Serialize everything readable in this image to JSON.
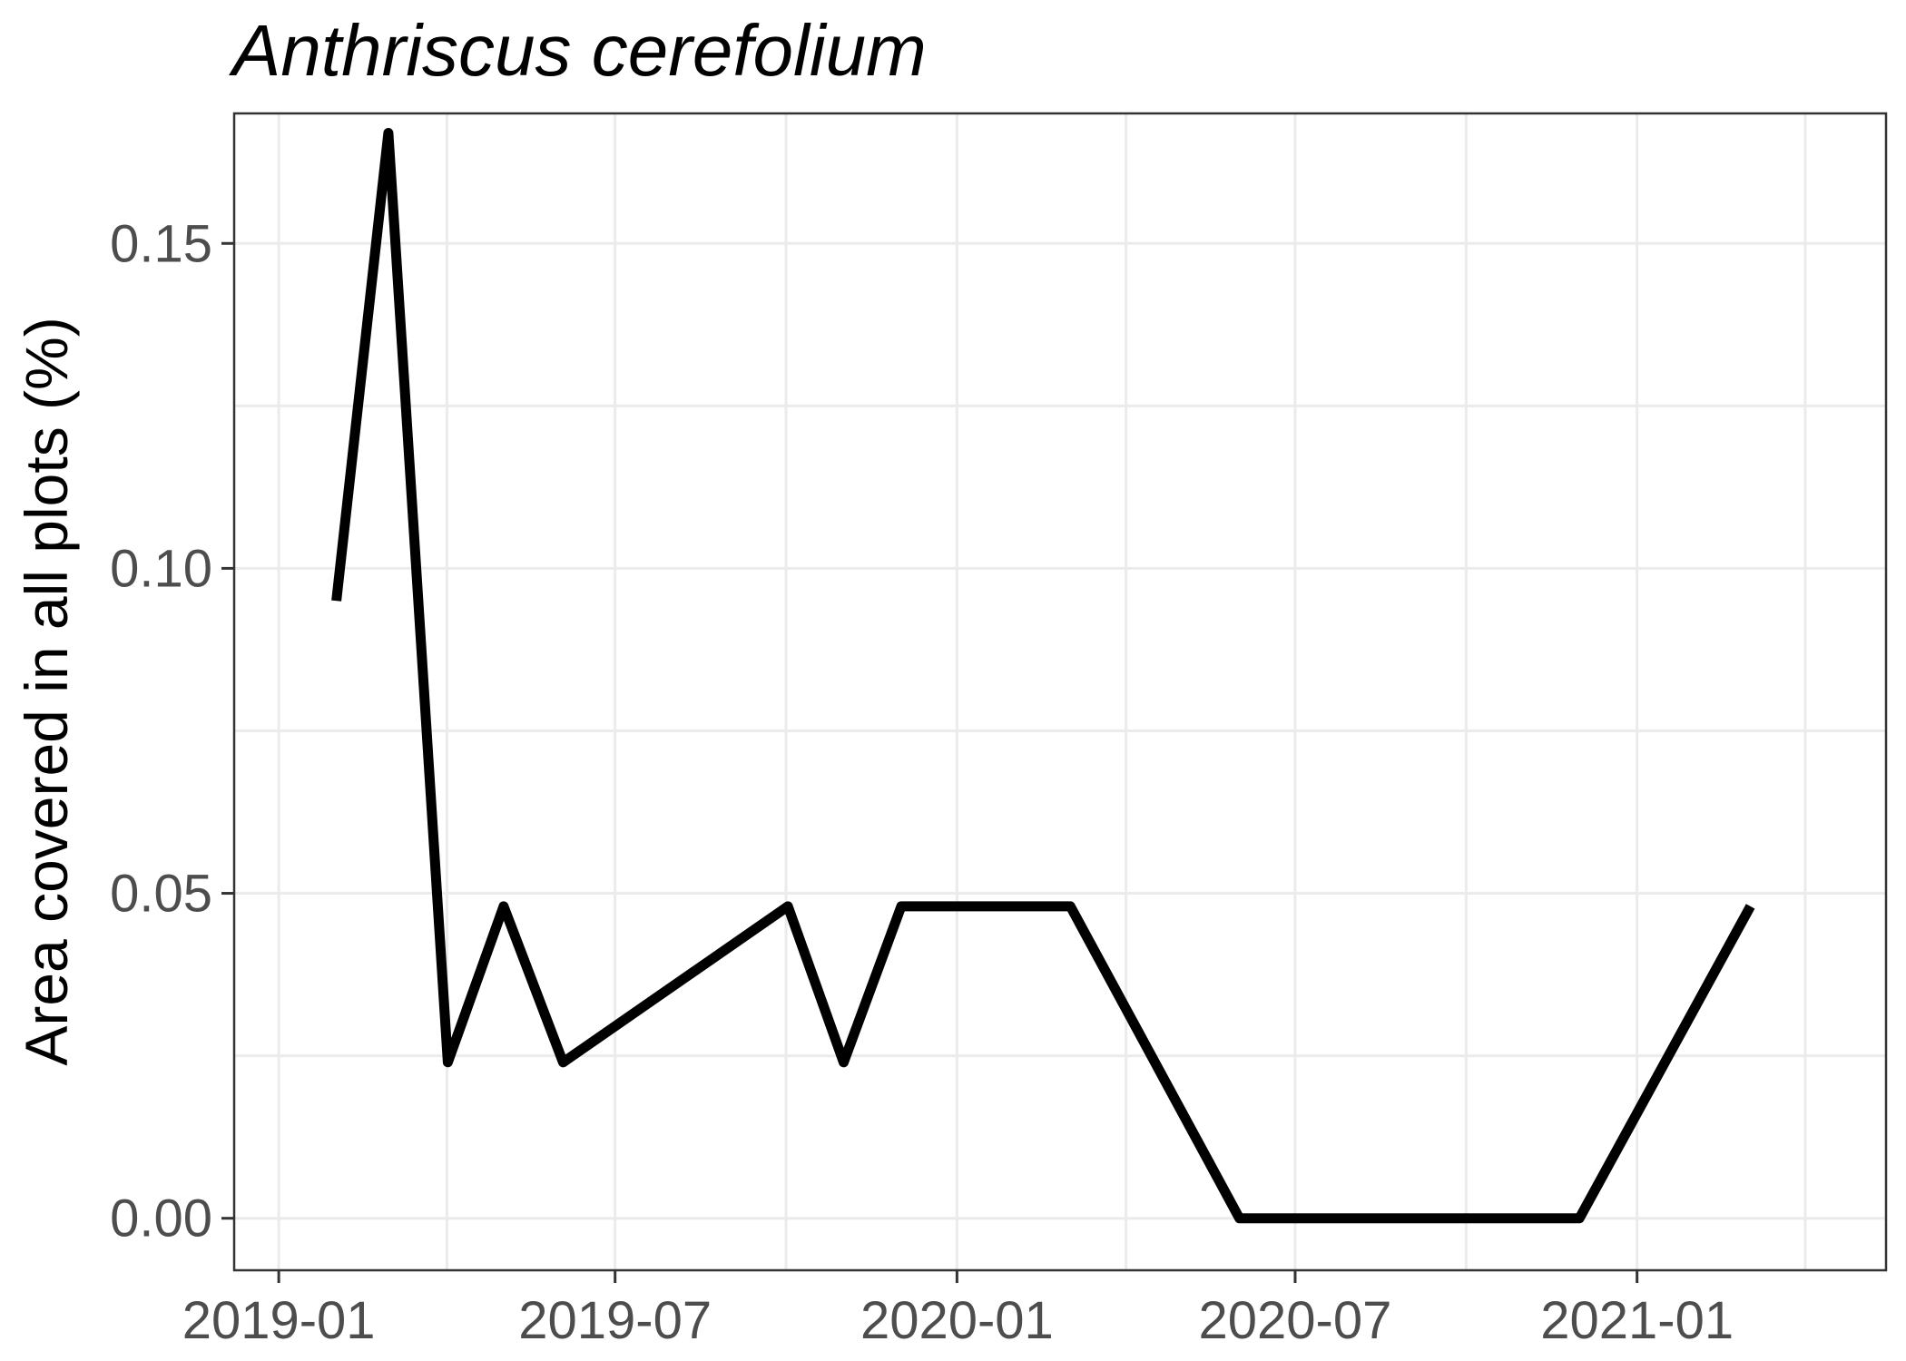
{
  "chart_data": {
    "type": "line",
    "title": "Anthriscus cerefolium",
    "xlabel": "",
    "ylabel": "Area covered in all plots (%)",
    "x_type": "date",
    "xlim": [
      "2018-12-08",
      "2021-05-15"
    ],
    "ylim": [
      -0.008,
      0.17
    ],
    "x_ticks": [
      "2019-01-01",
      "2019-07-01",
      "2020-01-01",
      "2020-07-01",
      "2021-01-01"
    ],
    "x_tick_labels": [
      "2019-01",
      "2019-07",
      "2020-01",
      "2020-07",
      "2021-01"
    ],
    "y_ticks": [
      0.0,
      0.05,
      0.1,
      0.15
    ],
    "y_tick_labels": [
      "0.00",
      "0.05",
      "0.10",
      "0.15"
    ],
    "grid": true,
    "colors": {
      "line": "#000000",
      "grid": "#ebebeb",
      "tick_text": "#4d4d4d"
    },
    "series": [
      {
        "x": [
          "2019-02-01",
          "2019-03-01",
          "2019-04-02",
          "2019-05-02",
          "2019-06-03",
          "2019-10-02",
          "2019-11-01",
          "2019-12-02",
          "2020-03-02",
          "2020-06-01",
          "2020-08-31",
          "2020-12-01",
          "2021-03-03"
        ],
        "y": [
          0.095,
          0.167,
          0.024,
          0.048,
          0.024,
          0.048,
          0.024,
          0.048,
          0.048,
          0.0,
          0.0,
          0.0,
          0.048
        ]
      }
    ]
  }
}
